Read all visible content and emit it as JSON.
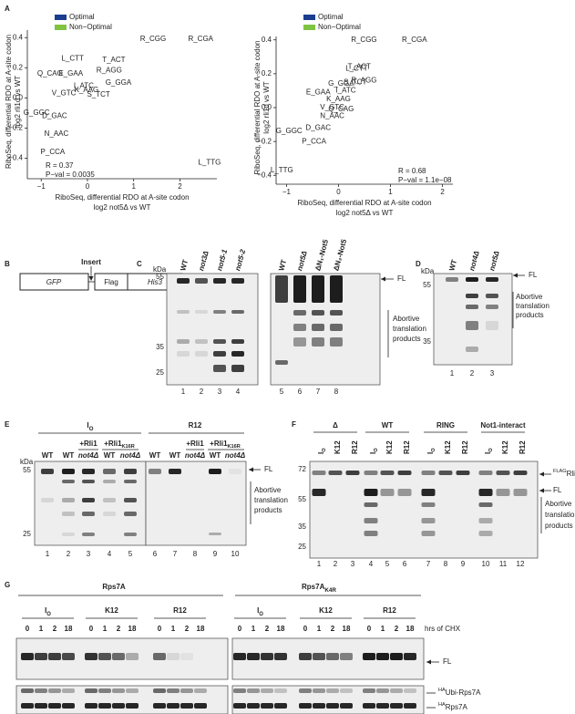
{
  "chart_data": [
    {
      "type": "scatter",
      "xlabel": "RiboSeq, differential RDO at A-site codon",
      "xlabel2": "log2 not5Δ vs WT",
      "ylabel": "RiboSeq, differential RDO at A-site codon",
      "ylabel2": "log2 rli1d vs WT",
      "stats": [
        "R = 0.37",
        "P−val = 0.0035"
      ],
      "xlim": [
        -1.3,
        2.8
      ],
      "xticks": [
        {
          "value": -1,
          "label": "−1"
        },
        0,
        1,
        2
      ],
      "ylim": [
        -0.5,
        0.45
      ],
      "yticks": [
        {
          "value": -0.4,
          "label": "−0.4"
        },
        {
          "value": -0.2,
          "label": "−0.2"
        },
        {
          "value": 0,
          "label": "0.0"
        },
        0.2,
        0.4
      ],
      "legend": "top-left",
      "series": [
        {
          "name": "Optimal",
          "color": "#1b3d8f",
          "labels": [
            "T_ACT",
            "E_GAA",
            "K_AAG",
            "D_GAC",
            "S_TCT",
            "I_ATC",
            "V_GTC",
            "N_AAC",
            "G_GGC"
          ],
          "x": [
            0.57,
            -0.36,
            -0.02,
            -0.71,
            0.24,
            -0.08,
            -0.51,
            -0.67,
            -1.1
          ],
          "values": [
            0.25,
            0.16,
            0.05,
            -0.12,
            0.02,
            0.08,
            0.03,
            -0.24,
            -0.1
          ]
        },
        {
          "name": "Non−Optimal",
          "color": "#80c342",
          "labels": [
            "R_CGG",
            "R_CGA",
            "L_TTG",
            "P_CCA",
            "L_CTT",
            "R_AGG",
            "Q_CAG",
            "G_GGA"
          ],
          "x": [
            1.42,
            2.45,
            2.64,
            -0.75,
            -0.32,
            0.47,
            -0.81,
            0.67
          ],
          "values": [
            0.39,
            0.39,
            -0.43,
            -0.36,
            0.26,
            0.18,
            0.16,
            0.1
          ]
        }
      ]
    },
    {
      "type": "scatter",
      "xlabel": "RiboSeq, differential RDO at A-site codon",
      "xlabel2": "log2 not5Δ vs WT",
      "ylabel": "RiboSeq, differential RDO at A-site codon",
      "ylabel2": "log2 rli1d vs WT",
      "stats": [
        "R = 0.68",
        "P−val = 1.1e−08"
      ],
      "xlim": [
        -1.2,
        2.2
      ],
      "xticks": [
        {
          "value": -1,
          "label": "−1"
        },
        0,
        1,
        2
      ],
      "ylim": [
        -0.42,
        0.42
      ],
      "yticks": [
        {
          "value": -0.4,
          "label": "−0.4"
        },
        {
          "value": -0.2,
          "label": "−0.2"
        },
        {
          "value": 0,
          "label": "0.0"
        },
        0.2,
        0.4
      ],
      "legend": "top-left",
      "series": [
        {
          "name": "Optimal",
          "color": "#1b3d8f",
          "labels": [
            "T_ACT",
            "K_AAG",
            "N_AAC",
            "G_GGC",
            "D_GAC",
            "V_GTC",
            "S_TCT",
            "I_ATC",
            "E_GAA"
          ],
          "x": [
            0.4,
            0,
            -0.12,
            -0.95,
            -0.39,
            -0.12,
            0.32,
            0.14,
            -0.39
          ],
          "values": [
            0.24,
            0.05,
            -0.05,
            -0.14,
            -0.12,
            0,
            0.15,
            0.1,
            0.09
          ]
        },
        {
          "name": "Non−Optimal",
          "color": "#80c342",
          "labels": [
            "R_CGG",
            "R_CGA",
            "L_TTG",
            "P_CCA",
            "L_CTT",
            "R_AGG",
            "Q_CAG",
            "G_GGA"
          ],
          "x": [
            0.49,
            1.46,
            -1.09,
            -0.47,
            0.35,
            0.49,
            0.05,
            0.05
          ],
          "values": [
            0.4,
            0.4,
            -0.37,
            -0.2,
            0.23,
            0.16,
            -0.01,
            0.14
          ]
        }
      ]
    }
  ],
  "letters": [
    "A",
    "B",
    "C",
    "D",
    "E",
    "F",
    "G"
  ],
  "B": {
    "insert": "Insert",
    "boxes": [
      "GFP",
      "Flag",
      "His3"
    ]
  },
  "C": {
    "kda": "kDa",
    "markers": [
      55,
      35,
      25
    ],
    "lanes_left": [
      "WT",
      "not3Δ",
      "not5-1",
      "not5-2"
    ],
    "lanes_right": [
      "WT",
      "not5Δ",
      "ΔN₁-Not5",
      "ΔN₂-Not5"
    ],
    "lane_numbers": [
      1,
      2,
      3,
      4,
      5,
      6,
      7,
      8
    ],
    "fl": "FL",
    "abortive": [
      "Abortive",
      "translation",
      "products"
    ]
  },
  "D": {
    "kda": "kDa",
    "markers": [
      55,
      35
    ],
    "lanes": [
      "WT",
      "not4Δ",
      "not5Δ"
    ],
    "lane_numbers": [
      1,
      2,
      3
    ],
    "fl": "FL",
    "abortive": [
      "Abortive",
      "translation",
      "products"
    ]
  },
  "E": {
    "groups": [
      {
        "text": "I",
        "sub": "O"
      },
      "R12"
    ],
    "subgroups": [
      "+Rli1",
      {
        "text": "+Rli1",
        "sub": "K16R"
      },
      "+Rli1",
      {
        "text": "+Rli1",
        "sub": "K16R"
      }
    ],
    "lanes": [
      "WT",
      "WT",
      "not4Δ",
      "WT",
      "not4Δ",
      "WT",
      "WT",
      "not4Δ",
      "WT",
      "not4Δ"
    ],
    "kda": "kDa",
    "markers": [
      55,
      25
    ],
    "lane_numbers": [
      1,
      2,
      3,
      4,
      5,
      6,
      7,
      8,
      9,
      10
    ],
    "fl": "FL",
    "abortive": [
      "Abortive",
      "translation",
      "products"
    ]
  },
  "F": {
    "groups": [
      "Δ",
      "WT",
      "RING",
      "Not1-interact"
    ],
    "lanes": [
      {
        "text": "I",
        "sub": "O"
      },
      "K12",
      "R12",
      {
        "text": "I",
        "sub": "O"
      },
      "K12",
      "R12",
      {
        "text": "I",
        "sub": "O"
      },
      "K12",
      "R12",
      {
        "text": "I",
        "sub": "O"
      },
      "K12",
      "R12"
    ],
    "markers": [
      72,
      55,
      35,
      25
    ],
    "lane_numbers": [
      1,
      2,
      3,
      4,
      5,
      6,
      7,
      8,
      9,
      10,
      11,
      12
    ],
    "flag": {
      "sup": "FLAG",
      "text": "Rli1"
    },
    "fl": "FL",
    "abortive": [
      "Abortive",
      "translation",
      "products"
    ]
  },
  "G": {
    "constructs": [
      "Rps7A",
      {
        "text": "Rps7A",
        "sub": "K4R"
      }
    ],
    "groups": [
      {
        "text": "I",
        "sub": "O"
      },
      "K12",
      "R12",
      {
        "text": "I",
        "sub": "O"
      },
      "K12",
      "R12"
    ],
    "hours": [
      0,
      1,
      2,
      18
    ],
    "hours_label": "hrs of CHX",
    "fl": "FL",
    "ubi": {
      "sup": "HA",
      "text": "Ubi-Rps7A"
    },
    "rps": {
      "sup": "HA",
      "text": "Rps7A"
    }
  }
}
